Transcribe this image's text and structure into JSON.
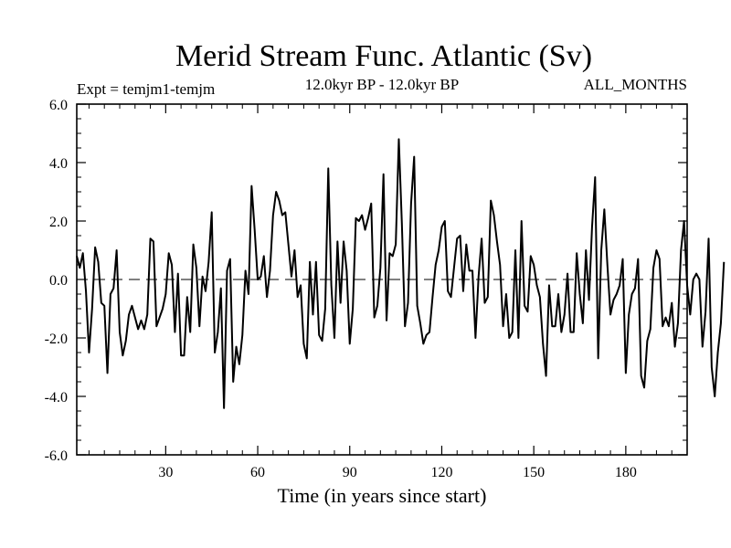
{
  "chart_data": {
    "type": "line",
    "title": "Merid Stream Func. Atlantic (Sv)",
    "experiment_label": "Expt = temjm1-temjm",
    "period_label": "12.0kyr BP - 12.0kyr BP",
    "season_label": "ALL_MONTHS",
    "xlabel": "Time (in years since start)",
    "ylabel": "",
    "xlim": [
      1,
      200
    ],
    "ylim": [
      -6.0,
      6.0
    ],
    "x_ticks": [
      30,
      60,
      90,
      120,
      150,
      180
    ],
    "x_tick_labels": [
      "30",
      "60",
      "90",
      "120",
      "150",
      "180"
    ],
    "y_ticks": [
      -6,
      -4,
      -2,
      0,
      2,
      4,
      6
    ],
    "y_tick_labels": [
      "-6.0",
      "-4.0",
      "-2.0",
      "0.0",
      "2.0",
      "4.0",
      "6.0"
    ],
    "zero_line": true,
    "series": [
      {
        "name": "Expt = temjm1-temjm",
        "x_start": 1,
        "x_step": 1,
        "values": [
          0.8,
          0.4,
          0.9,
          -0.4,
          -2.5,
          -1.0,
          1.1,
          0.6,
          -0.8,
          -0.9,
          -3.2,
          -0.5,
          -0.3,
          1.0,
          -1.8,
          -2.6,
          -2.1,
          -1.2,
          -0.9,
          -1.3,
          -1.7,
          -1.4,
          -1.7,
          -1.2,
          1.4,
          1.3,
          -1.6,
          -1.3,
          -1.0,
          -0.5,
          0.9,
          0.5,
          -1.8,
          0.2,
          -2.6,
          -2.6,
          -0.6,
          -1.8,
          1.2,
          0.4,
          -1.6,
          0.1,
          -0.4,
          0.6,
          2.3,
          -2.5,
          -1.8,
          -0.3,
          -4.4,
          0.3,
          0.7,
          -3.5,
          -2.3,
          -2.9,
          -1.9,
          0.3,
          -0.5,
          3.2,
          1.7,
          0.0,
          0.1,
          0.8,
          -0.6,
          0.3,
          2.2,
          3.0,
          2.7,
          2.2,
          2.3,
          1.2,
          0.1,
          1.0,
          -0.6,
          -0.2,
          -2.2,
          -2.7,
          0.6,
          -1.2,
          0.6,
          -1.9,
          -2.1,
          -1.0,
          3.8,
          -0.2,
          -2.0,
          1.3,
          -0.8,
          1.3,
          0.3,
          -2.2,
          -1.0,
          2.1,
          2.0,
          2.2,
          1.7,
          2.1,
          2.6,
          -1.3,
          -0.9,
          0.4,
          3.6,
          -1.4,
          0.9,
          0.8,
          1.2,
          4.8,
          1.9,
          -1.6,
          -0.8,
          2.6,
          4.2,
          -0.9,
          -1.5,
          -2.2,
          -1.9,
          -1.8,
          -0.6,
          0.5,
          1.0,
          1.8,
          2.0,
          -0.4,
          -0.6,
          0.4,
          1.4,
          1.5,
          -0.4,
          1.2,
          0.3,
          0.3,
          -2.0,
          0.1,
          1.4,
          -0.8,
          -0.6,
          2.7,
          2.2,
          1.3,
          0.5,
          -1.6,
          -0.5,
          -2.0,
          -1.8,
          1.0,
          -2.0,
          2.0,
          -0.9,
          -1.1,
          0.8,
          0.5,
          -0.2,
          -0.6,
          -2.2,
          -3.3,
          -0.2,
          -1.6,
          -1.6,
          -0.5,
          -1.8,
          -1.2,
          0.2,
          -1.8,
          -1.8,
          0.9,
          -0.5,
          -1.5,
          1.0,
          -0.7,
          1.8,
          3.5,
          -2.7,
          1.0,
          2.4,
          0.5,
          -1.2,
          -0.7,
          -0.5,
          -0.2,
          0.7,
          -3.2,
          -1.2,
          -0.5,
          -0.3,
          0.7,
          -3.3,
          -3.7,
          -2.1,
          -1.7,
          0.4,
          1.0,
          0.7,
          -1.6,
          -1.3,
          -1.6,
          -0.8,
          -2.3,
          -1.5,
          1.0,
          2.0,
          -0.2,
          -1.2,
          0.0,
          0.2,
          0.0,
          -2.3,
          -1.1,
          1.4,
          -3.0,
          -4.0,
          -2.5,
          -1.5,
          0.6
        ]
      }
    ]
  }
}
